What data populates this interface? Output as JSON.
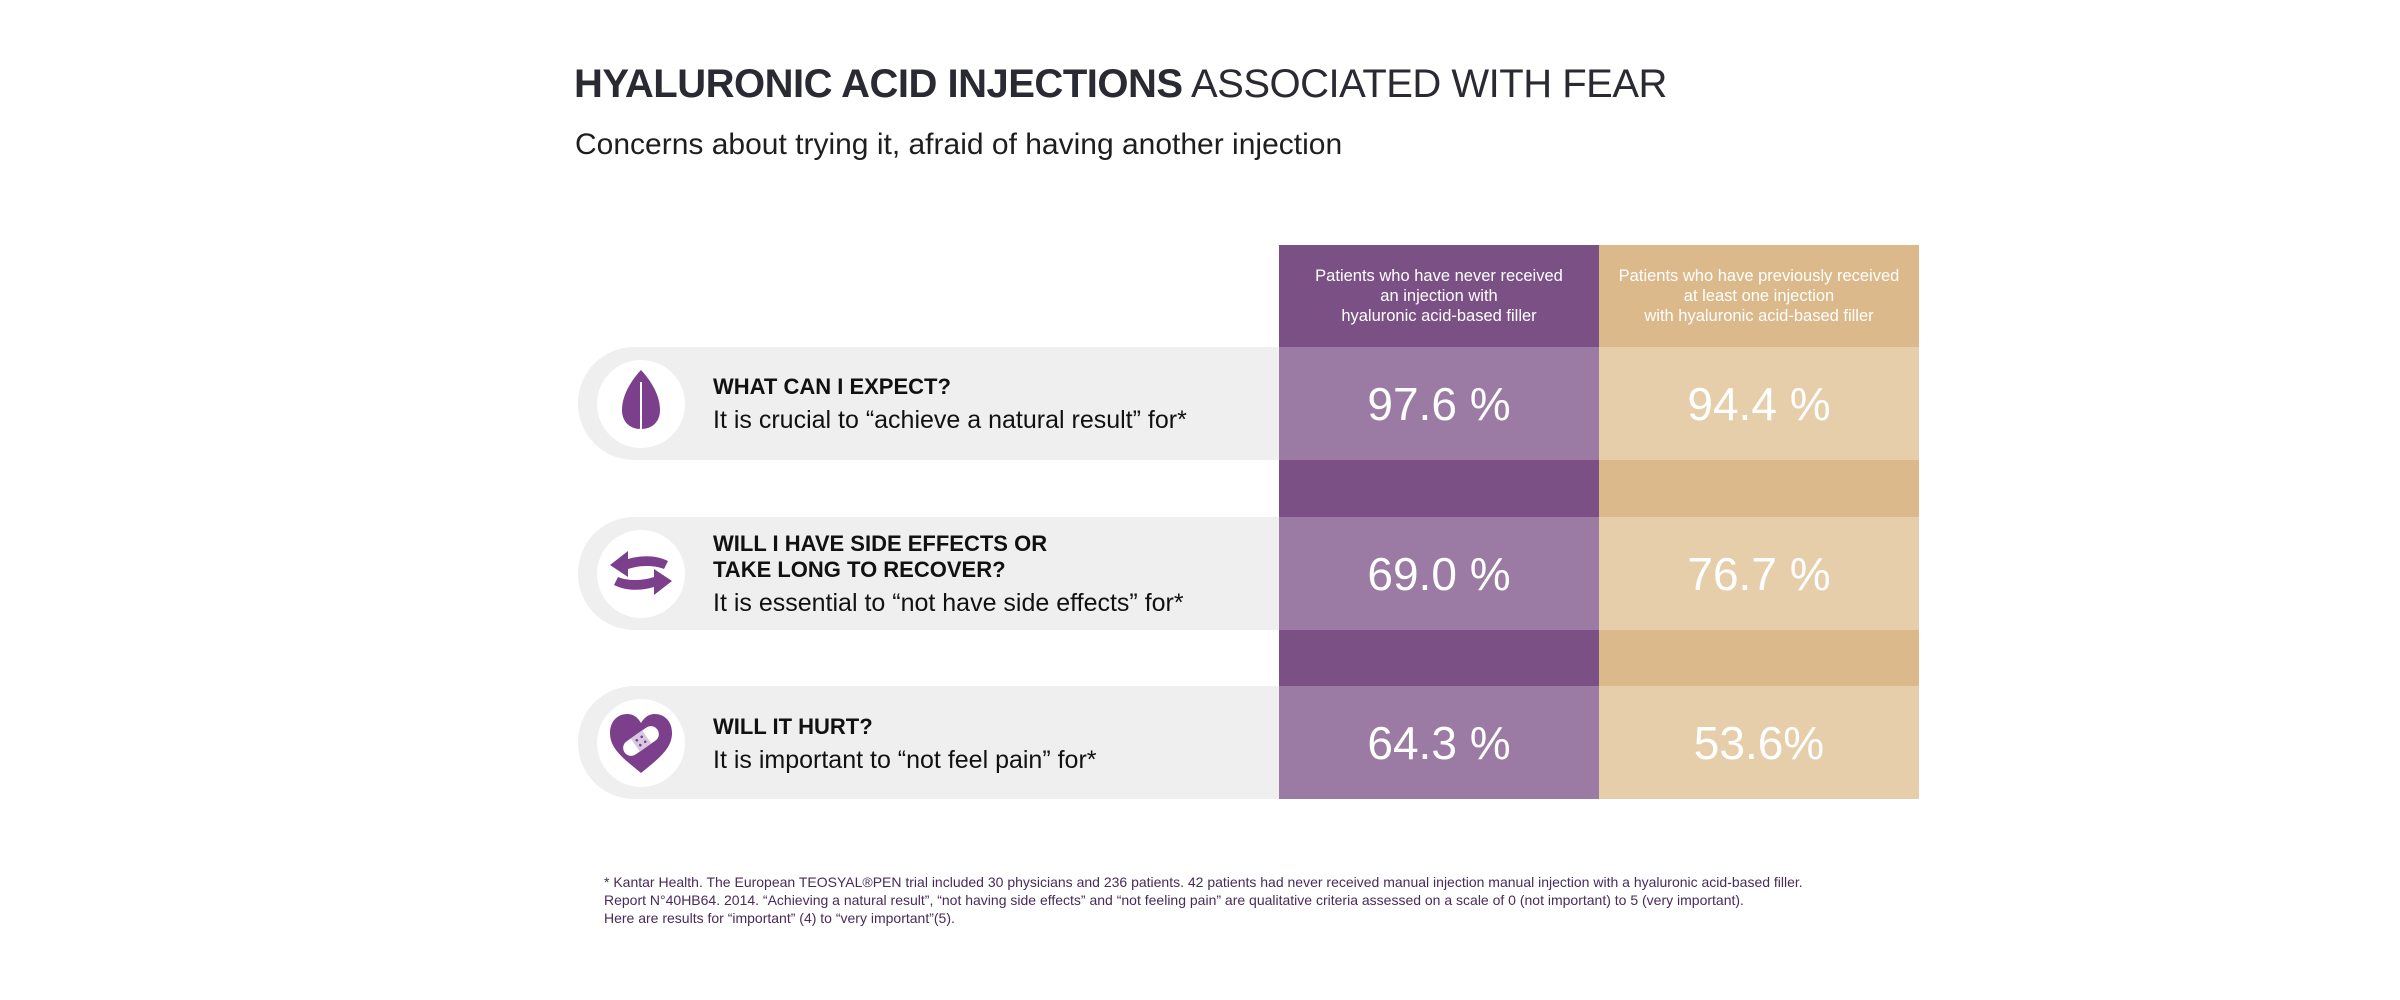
{
  "title": {
    "bold": "HYALURONIC ACID INJECTIONS",
    "regular": "ASSOCIATED WITH FEAR"
  },
  "subtitle": "Concerns about trying it, afraid of having another injection",
  "colors": {
    "purple_header": "#7b5185",
    "purple_cell": "#9b7ba4",
    "tan_header": "#dbb98a",
    "tan_cell": "#e7ceaa",
    "row_bg": "#efefef"
  },
  "chart_data": {
    "type": "table",
    "columns": [
      "Patients who have never received\nan injection with\nhyaluronic acid-based filler",
      "Patients who have previously received\nat least one injection\nwith hyaluronic acid-based filler"
    ],
    "rows": [
      {
        "icon": "leaf-icon",
        "question": "WHAT CAN I EXPECT?",
        "statement": "It is crucial to “achieve a natural result” for*",
        "values_text": [
          "97.6 %",
          "94.4 %"
        ],
        "values": [
          97.6,
          94.4
        ]
      },
      {
        "icon": "swap-arrows-icon",
        "question": "WILL I HAVE SIDE EFFECTS OR\nTAKE LONG TO RECOVER?",
        "statement": "It is essential to “not have side effects” for*",
        "values_text": [
          "69.0 %",
          "76.7 %"
        ],
        "values": [
          69.0,
          76.7
        ]
      },
      {
        "icon": "heart-bandage-icon",
        "question": "WILL IT HURT?",
        "statement": "It is important to “not feel pain” for*",
        "values_text": [
          "64.3 %",
          "53.6%"
        ],
        "values": [
          64.3,
          53.6
        ]
      }
    ]
  },
  "footnote": "* Kantar Health. The European TEOSYAL®PEN trial included 30 physicians and 236 patients. 42 patients had never received manual injection manual injection with a hyaluronic acid-based filler.\nReport N°40HB64. 2014. “Achieving a natural result”, “not having side effects” and “not feeling pain” are qualitative criteria assessed on a scale of 0 (not important) to 5 (very important).\nHere are results for “important” (4) to “very important”(5)."
}
